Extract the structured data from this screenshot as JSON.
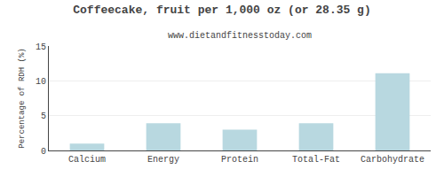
{
  "chart_data": {
    "type": "bar",
    "title": "Coffeecake, fruit per 1,000 oz (or 28.35 g)",
    "subtitle": "www.dietandfitnesstoday.com",
    "ylabel": "Percentage of RDH (%)",
    "categories": [
      "Calcium",
      "Energy",
      "Protein",
      "Total-Fat",
      "Carbohydrate"
    ],
    "values": [
      1.0,
      3.9,
      3.0,
      3.9,
      11.1
    ],
    "color": "#b8d8e0",
    "ylim": [
      0,
      15
    ],
    "yticks": [
      0,
      5,
      10,
      15
    ],
    "grid": true
  }
}
